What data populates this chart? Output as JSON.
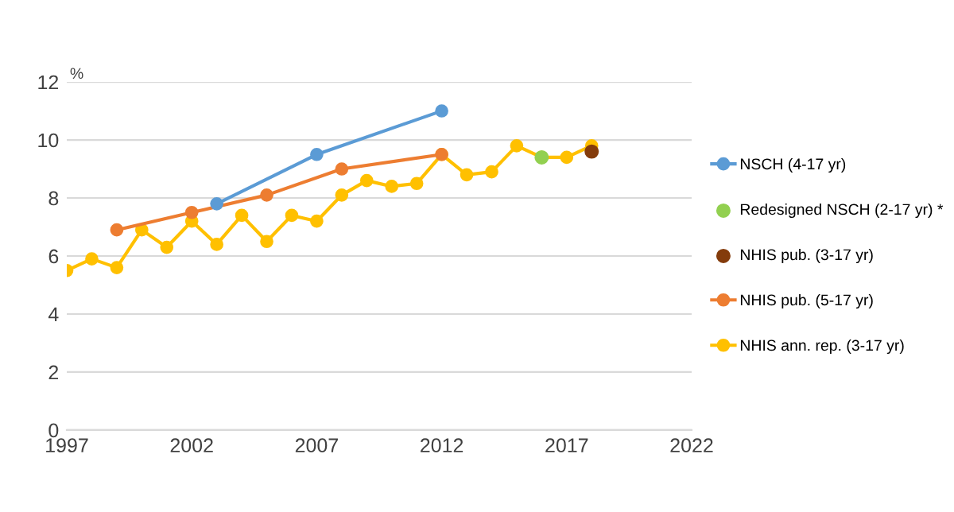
{
  "chart_data": {
    "type": "line",
    "ylabel": "%",
    "xlim": [
      1997,
      2022
    ],
    "xticks": [
      1997,
      2002,
      2007,
      2012,
      2017,
      2022
    ],
    "ylim": [
      0,
      12
    ],
    "yticks": [
      0,
      2,
      4,
      6,
      8,
      10,
      12
    ],
    "grid": "y",
    "legend": "right",
    "marker": "circle",
    "line_style": "solid",
    "series": [
      {
        "name": "NSCH (4-17 yr)",
        "color": "#5b9bd5",
        "x": [
          2003,
          2007,
          2012
        ],
        "values": [
          7.8,
          9.5,
          11.0
        ]
      },
      {
        "name": "Redesigned NSCH (2-17 yr) *",
        "color": "#92d050",
        "type": "scatter",
        "x": [
          2016
        ],
        "values": [
          9.4
        ]
      },
      {
        "name": "NHIS pub. (3-17 yr)",
        "color": "#843c0c",
        "type": "scatter",
        "x": [
          2018
        ],
        "values": [
          9.6
        ]
      },
      {
        "name": "NHIS pub. (5-17 yr)",
        "color": "#ed7d31",
        "x": [
          1999,
          2002,
          2005,
          2008,
          2012
        ],
        "values": [
          6.9,
          7.5,
          8.1,
          9.0,
          9.5
        ]
      },
      {
        "name": "NHIS ann. rep. (3-17 yr)",
        "color": "#ffc000",
        "x": [
          1997,
          1998,
          1999,
          2000,
          2001,
          2002,
          2003,
          2004,
          2005,
          2006,
          2007,
          2008,
          2009,
          2010,
          2011,
          2012,
          2013,
          2014,
          2015,
          2016,
          2017,
          2018
        ],
        "values": [
          5.5,
          5.9,
          5.6,
          6.9,
          6.3,
          7.2,
          6.4,
          7.4,
          6.5,
          7.4,
          7.2,
          8.1,
          8.6,
          8.4,
          8.5,
          9.5,
          8.8,
          8.9,
          9.8,
          9.4,
          9.4,
          9.8
        ]
      }
    ]
  }
}
